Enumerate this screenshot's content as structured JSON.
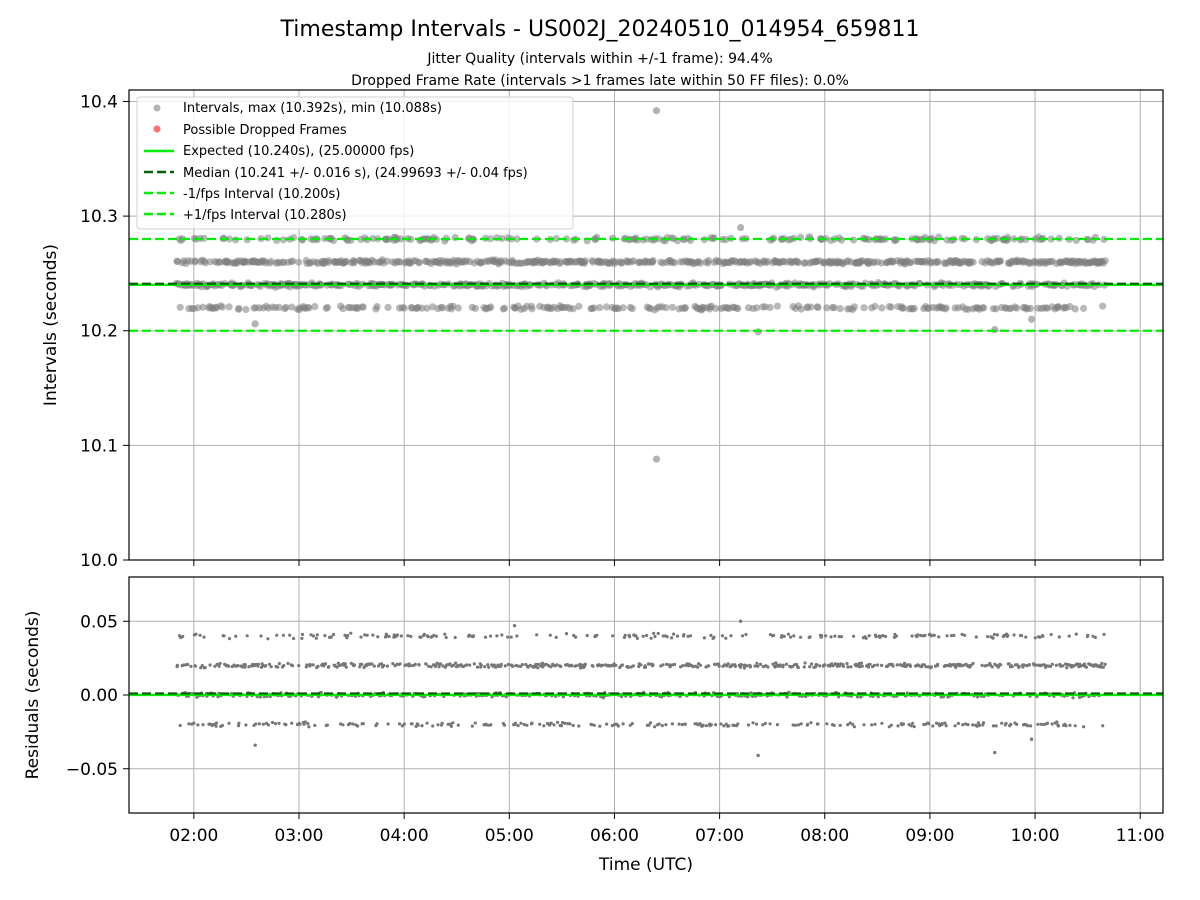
{
  "chart_data": {
    "title": "Timestamp Intervals - US002J_20240510_014954_659811",
    "subtitle_lines": [
      "Jitter Quality (intervals within +/-1 frame): 94.4%",
      "Dropped Frame Rate (intervals >1 frames late within 50 FF files): 0.0%"
    ],
    "xlabel": "Time (UTC)",
    "x_tick_labels": [
      "02:00",
      "03:00",
      "04:00",
      "05:00",
      "06:00",
      "07:00",
      "08:00",
      "09:00",
      "10:00",
      "11:00"
    ],
    "x_range_utc": [
      "01:23",
      "11:13"
    ],
    "series_time_span_utc": [
      "01:50",
      "10:40"
    ],
    "grid": true,
    "legend_placement": "top-left",
    "charts": [
      {
        "type": "scatter",
        "ylabel": "Intervals (seconds)",
        "ylim": [
          10.0,
          10.41
        ],
        "y_tick_labels": [
          "10.0",
          "10.1",
          "10.2",
          "10.3",
          "10.4"
        ],
        "legend": [
          {
            "label": "Intervals, max (10.392s), min (10.088s)",
            "style": "marker",
            "color": "#808080"
          },
          {
            "label": "Possible Dropped Frames",
            "style": "marker",
            "color": "#ff4d4d"
          },
          {
            "label": "Expected (10.240s), (25.00000 fps)",
            "style": "solid",
            "color": "#00ee00"
          },
          {
            "label": "Median (10.241 +/- 0.016 s), (24.99693 +/- 0.04 fps)",
            "style": "dashed",
            "color": "#006400"
          },
          {
            "label": "-1/fps Interval (10.200s)",
            "style": "dashed",
            "color": "#00ee00"
          },
          {
            "label": "+1/fps Interval (10.280s)",
            "style": "dashed",
            "color": "#00ee00"
          }
        ],
        "reference_lines": [
          {
            "name": "expected",
            "y": 10.24,
            "color": "#00ee00",
            "dash": false
          },
          {
            "name": "median",
            "y": 10.241,
            "color": "#006400",
            "dash": true
          },
          {
            "name": "minus_one_frame",
            "y": 10.2,
            "color": "#00ee00",
            "dash": true
          },
          {
            "name": "plus_one_frame",
            "y": 10.28,
            "color": "#00ee00",
            "dash": true
          }
        ],
        "interval_clusters": [
          {
            "y": 10.22,
            "share": 0.16
          },
          {
            "y": 10.24,
            "share": 0.34
          },
          {
            "y": 10.26,
            "share": 0.36
          },
          {
            "y": 10.28,
            "share": 0.06
          }
        ],
        "outliers": [
          {
            "time": "06:24",
            "y": 10.392
          },
          {
            "time": "06:24",
            "y": 10.088
          },
          {
            "time": "07:22",
            "y": 10.199
          },
          {
            "time": "02:35",
            "y": 10.206
          },
          {
            "time": "09:37",
            "y": 10.201
          },
          {
            "time": "09:58",
            "y": 10.21
          },
          {
            "time": "07:12",
            "y": 10.29
          }
        ],
        "dropped_frames": []
      },
      {
        "type": "scatter",
        "ylabel": "Residuals (seconds)",
        "ylim": [
          -0.08,
          0.08
        ],
        "y_tick_labels": [
          "−0.05",
          "0.00",
          "0.05"
        ],
        "reference_lines": [
          {
            "name": "zero",
            "y": 0.0,
            "color": "#00ee00",
            "dash": false
          },
          {
            "name": "median_offset",
            "y": 0.001,
            "color": "#006400",
            "dash": true
          }
        ],
        "residual_clusters": [
          {
            "y": -0.02,
            "share": 0.16
          },
          {
            "y": 0.0,
            "share": 0.34
          },
          {
            "y": 0.02,
            "share": 0.36
          },
          {
            "y": 0.04,
            "share": 0.06
          }
        ],
        "outliers": [
          {
            "time": "02:35",
            "y": -0.034
          },
          {
            "time": "07:22",
            "y": -0.041
          },
          {
            "time": "09:37",
            "y": -0.039
          },
          {
            "time": "09:58",
            "y": -0.03
          },
          {
            "time": "07:12",
            "y": 0.05
          },
          {
            "time": "05:03",
            "y": 0.047
          }
        ]
      }
    ]
  }
}
